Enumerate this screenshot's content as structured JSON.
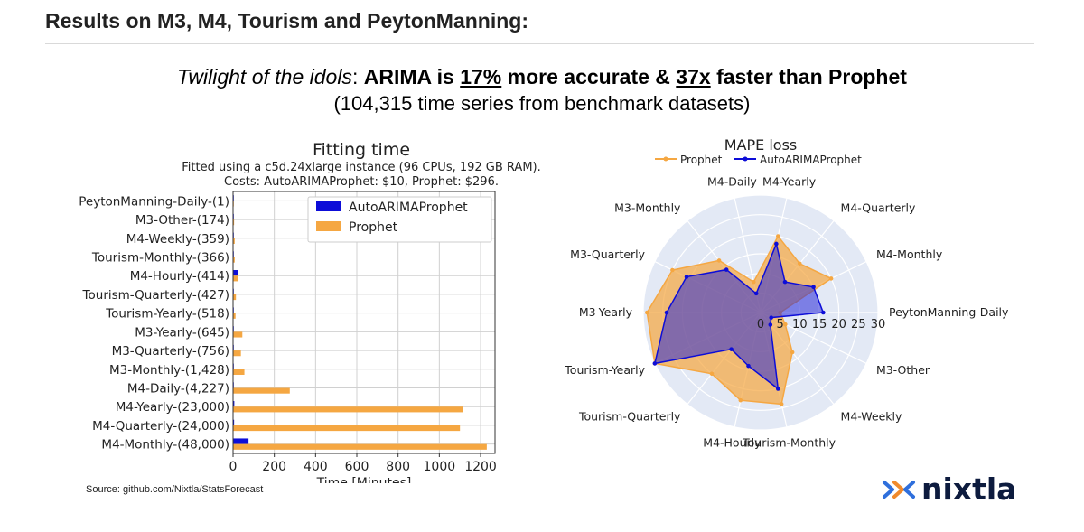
{
  "header": {
    "title": "Results on M3, M4, Tourism and PeytonManning:"
  },
  "headline": {
    "italic": "Twilight of the idols",
    "colon": ":",
    "bold_a": "ARIMA is",
    "pct": "17%",
    "bold_b": "more accurate &",
    "speed": "37x",
    "bold_c": "faster than Prophet",
    "subtitle": "(104,315 time series from benchmark datasets)"
  },
  "footer": {
    "source": "Source: github.com/Nixtla/StatsForecast",
    "logo_text": "nixtla"
  },
  "colors": {
    "prophet": "#f5a742",
    "arima": "#0d0dd8",
    "radar_bg": "#e3e9f5",
    "logo_blue": "#2f6fdc",
    "logo_orange": "#f08a2c"
  },
  "chart_data": [
    {
      "type": "bar",
      "orientation": "horizontal",
      "title": "Fitting time",
      "subtitle": [
        "Fitted using a c5d.24xlarge instance (96 CPUs, 192 GB RAM).",
        "Costs: AutoARIMAProphet: $10, Prophet: $296."
      ],
      "xlabel": "Time [Minutes]",
      "ylabel": "",
      "xlim": [
        0,
        1270
      ],
      "xticks": [
        0,
        200,
        400,
        600,
        800,
        1000,
        1200
      ],
      "grid": true,
      "legend": "top-right",
      "categories": [
        "PeytonManning-Daily-(1)",
        "M3-Other-(174)",
        "M4-Weekly-(359)",
        "Tourism-Monthly-(366)",
        "M4-Hourly-(414)",
        "Tourism-Quarterly-(427)",
        "Tourism-Yearly-(518)",
        "M3-Yearly-(645)",
        "M3-Quarterly-(756)",
        "M3-Monthly-(1,428)",
        "M4-Daily-(4,227)",
        "M4-Yearly-(23,000)",
        "M4-Quarterly-(24,000)",
        "M4-Monthly-(48,000)"
      ],
      "series": [
        {
          "name": "AutoARIMAProphet",
          "values": [
            0.1,
            0.2,
            0.5,
            0.5,
            25,
            0.5,
            0.5,
            1,
            1,
            2,
            3,
            6,
            5,
            75
          ]
        },
        {
          "name": "Prophet",
          "values": [
            1,
            5,
            8,
            8,
            22,
            14,
            12,
            45,
            38,
            55,
            275,
            1115,
            1100,
            1230
          ]
        }
      ]
    },
    {
      "type": "radar",
      "title": "MAPE loss",
      "legend": "top-center",
      "rlim": [
        0,
        30
      ],
      "rticks": [
        0,
        5,
        10,
        15,
        20,
        25,
        30
      ],
      "categories": [
        "PeytonManning-Daily",
        "M4-Monthly",
        "M4-Quarterly",
        "M4-Yearly",
        "M4-Daily",
        "M3-Monthly",
        "M3-Quarterly",
        "M3-Yearly",
        "Tourism-Yearly",
        "Tourism-Quarterly",
        "M4-Hourly",
        "Tourism-Monthly",
        "M4-Weekly",
        "M3-Other"
      ],
      "series": [
        {
          "name": "Prophet",
          "values": [
            5,
            20,
            16,
            20,
            8,
            17,
            25,
            29,
            30,
            20,
            23,
            24,
            13,
            7
          ]
        },
        {
          "name": "AutoARIMAProphet",
          "values": [
            16,
            15,
            10,
            18,
            5,
            14,
            21,
            24,
            30,
            12,
            14,
            20,
            4,
            3
          ]
        }
      ]
    }
  ]
}
